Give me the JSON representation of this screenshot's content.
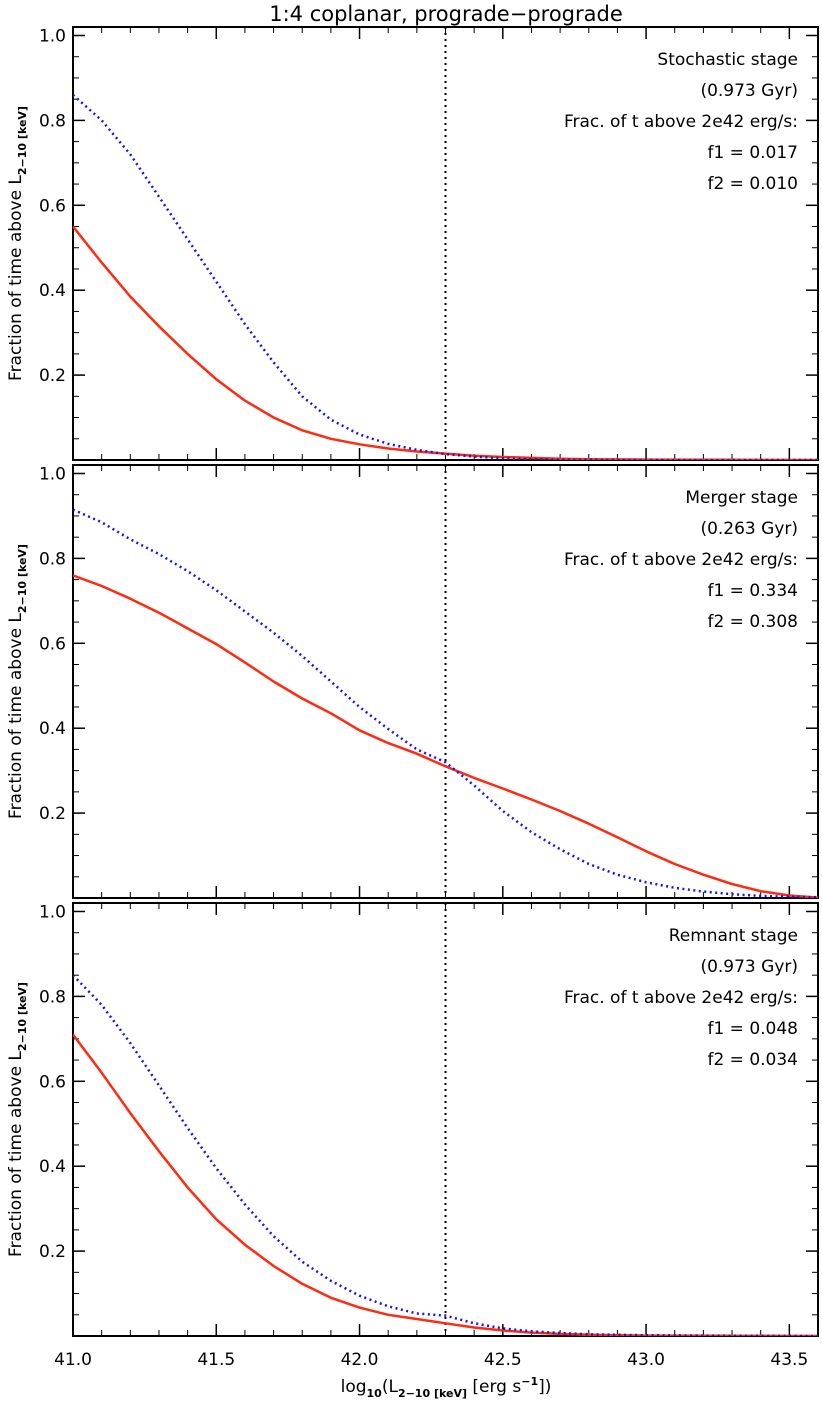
{
  "title": "1:4 coplanar, prograde−prograde",
  "colors": {
    "f1": "#ff2a10",
    "f2": "#1414f0",
    "threshold": "#000000",
    "axes": "#000000"
  },
  "axes": {
    "xlabel": {
      "pre": "log",
      "base_sub": "10",
      "open": "(L",
      "lsub": "2−10 [keV]",
      "mid": " [erg s",
      "sup": "−1",
      "close": "])"
    },
    "ylabel": {
      "text": "Fraction of time above L",
      "sub": "2−10 [keV]"
    },
    "xlim": [
      41.0,
      43.6
    ],
    "ylim": [
      0.0,
      1.02
    ],
    "xticks": [
      41.0,
      41.5,
      42.0,
      42.5,
      43.0,
      43.5
    ],
    "xtick_labels": [
      "41.0",
      "41.5",
      "42.0",
      "42.5",
      "43.0",
      "43.5"
    ],
    "yticks": [
      0.2,
      0.4,
      0.6,
      0.8,
      1.0
    ],
    "ytick_labels": [
      "0.2",
      "0.4",
      "0.6",
      "0.8",
      "1.0"
    ],
    "threshold_x": 42.3
  },
  "chart_data": [
    {
      "type": "line",
      "stage": "Stochastic stage",
      "duration": "(0.973 Gyr)",
      "frac_label": "Frac. of t above 2e42 erg/s:",
      "f1_text": "f1 = 0.017",
      "f2_text": "f2 = 0.010",
      "series": [
        {
          "key": "f1",
          "style": "solid",
          "x": [
            41.0,
            41.1,
            41.2,
            41.3,
            41.4,
            41.5,
            41.6,
            41.7,
            41.8,
            41.9,
            42.0,
            42.1,
            42.2,
            42.3,
            42.4,
            42.5,
            42.6,
            42.7,
            42.8,
            43.0,
            43.2,
            43.4,
            43.6
          ],
          "y": [
            0.55,
            0.465,
            0.385,
            0.315,
            0.25,
            0.19,
            0.14,
            0.1,
            0.07,
            0.05,
            0.037,
            0.027,
            0.02,
            0.015,
            0.01,
            0.007,
            0.005,
            0.003,
            0.002,
            0.001,
            0.0005,
            0.0002,
            0.0
          ]
        },
        {
          "key": "f2",
          "style": "dotted",
          "x": [
            41.0,
            41.1,
            41.2,
            41.3,
            41.4,
            41.5,
            41.6,
            41.7,
            41.8,
            41.9,
            42.0,
            42.1,
            42.2,
            42.3,
            42.4,
            42.5,
            42.6,
            42.7,
            42.8,
            43.0,
            43.2,
            43.4,
            43.6
          ],
          "y": [
            0.86,
            0.8,
            0.72,
            0.62,
            0.52,
            0.42,
            0.32,
            0.23,
            0.15,
            0.095,
            0.06,
            0.038,
            0.024,
            0.014,
            0.008,
            0.004,
            0.002,
            0.001,
            0.0005,
            0.0002,
            0.0001,
            0.0,
            0.0
          ]
        }
      ]
    },
    {
      "type": "line",
      "stage": "Merger stage",
      "duration": "(0.263 Gyr)",
      "frac_label": "Frac. of t above 2e42 erg/s:",
      "f1_text": "f1 = 0.334",
      "f2_text": "f2 = 0.308",
      "series": [
        {
          "key": "f1",
          "style": "solid",
          "x": [
            41.0,
            41.1,
            41.2,
            41.3,
            41.4,
            41.5,
            41.6,
            41.7,
            41.8,
            41.9,
            42.0,
            42.1,
            42.2,
            42.3,
            42.4,
            42.5,
            42.6,
            42.7,
            42.8,
            42.9,
            43.0,
            43.1,
            43.2,
            43.3,
            43.4,
            43.5,
            43.6
          ],
          "y": [
            0.76,
            0.735,
            0.705,
            0.672,
            0.635,
            0.598,
            0.555,
            0.51,
            0.47,
            0.435,
            0.395,
            0.365,
            0.34,
            0.31,
            0.283,
            0.258,
            0.232,
            0.205,
            0.175,
            0.143,
            0.11,
            0.08,
            0.055,
            0.033,
            0.016,
            0.006,
            0.001
          ]
        },
        {
          "key": "f2",
          "style": "dotted",
          "x": [
            41.0,
            41.1,
            41.2,
            41.3,
            41.4,
            41.5,
            41.6,
            41.7,
            41.8,
            41.9,
            42.0,
            42.1,
            42.2,
            42.3,
            42.4,
            42.5,
            42.6,
            42.7,
            42.8,
            42.9,
            43.0,
            43.1,
            43.2,
            43.3,
            43.4,
            43.5,
            43.6
          ],
          "y": [
            0.915,
            0.885,
            0.845,
            0.81,
            0.77,
            0.725,
            0.675,
            0.625,
            0.57,
            0.51,
            0.45,
            0.398,
            0.35,
            0.32,
            0.265,
            0.205,
            0.155,
            0.115,
            0.08,
            0.055,
            0.037,
            0.024,
            0.015,
            0.009,
            0.005,
            0.003,
            0.002
          ]
        }
      ]
    },
    {
      "type": "line",
      "stage": "Remnant stage",
      "duration": "(0.973 Gyr)",
      "frac_label": "Frac. of t above 2e42 erg/s:",
      "f1_text": "f1 = 0.048",
      "f2_text": "f2 = 0.034",
      "series": [
        {
          "key": "f1",
          "style": "solid",
          "x": [
            41.0,
            41.1,
            41.2,
            41.3,
            41.4,
            41.5,
            41.6,
            41.7,
            41.8,
            41.9,
            42.0,
            42.1,
            42.2,
            42.3,
            42.4,
            42.5,
            42.6,
            42.7,
            42.8,
            43.0,
            43.2,
            43.4,
            43.6
          ],
          "y": [
            0.71,
            0.62,
            0.525,
            0.435,
            0.35,
            0.275,
            0.215,
            0.165,
            0.123,
            0.09,
            0.067,
            0.05,
            0.04,
            0.03,
            0.02,
            0.013,
            0.008,
            0.005,
            0.003,
            0.001,
            0.0005,
            0.0002,
            0.0
          ]
        },
        {
          "key": "f2",
          "style": "dotted",
          "x": [
            41.0,
            41.1,
            41.2,
            41.3,
            41.4,
            41.5,
            41.6,
            41.7,
            41.8,
            41.9,
            42.0,
            42.1,
            42.2,
            42.3,
            42.4,
            42.5,
            42.6,
            42.7,
            42.8,
            43.0,
            43.2,
            43.4,
            43.6
          ],
          "y": [
            0.85,
            0.78,
            0.69,
            0.59,
            0.49,
            0.395,
            0.31,
            0.235,
            0.175,
            0.13,
            0.095,
            0.07,
            0.053,
            0.048,
            0.03,
            0.018,
            0.011,
            0.007,
            0.004,
            0.002,
            0.001,
            0.0005,
            0.0
          ]
        }
      ]
    }
  ]
}
